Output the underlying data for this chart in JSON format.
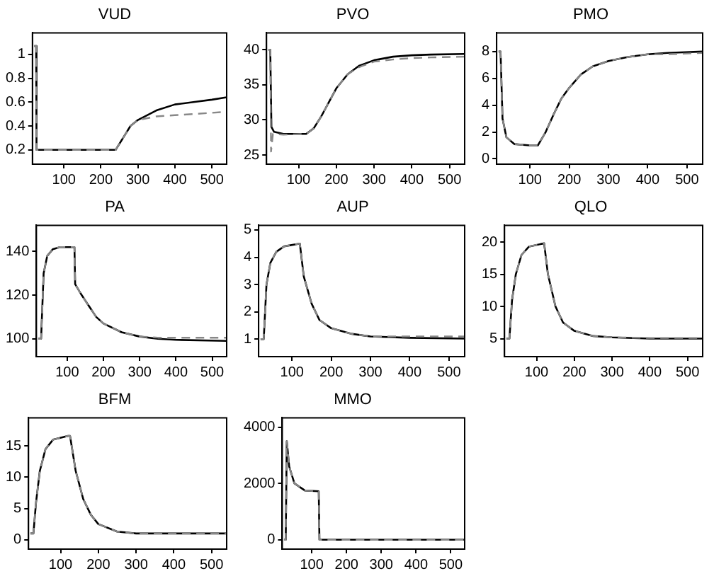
{
  "chart_data": [
    {
      "type": "line",
      "title": "VUD",
      "xlim": [
        15,
        540
      ],
      "xticks": [
        100,
        200,
        300,
        400,
        500
      ],
      "ylim": [
        0.08,
        1.18
      ],
      "yticks": [
        0.2,
        0.4,
        0.6,
        0.8,
        1
      ],
      "marker": "none",
      "series": [
        {
          "color": "#000000",
          "line_style": "solid",
          "x": [
            20,
            25,
            26,
            240,
            260,
            280,
            300,
            350,
            400,
            450,
            500,
            540
          ],
          "values": [
            1.07,
            1.07,
            0.2,
            0.2,
            0.3,
            0.4,
            0.45,
            0.53,
            0.58,
            0.6,
            0.62,
            0.64
          ]
        },
        {
          "color": "#888888",
          "line_style": "dashed",
          "x": [
            20,
            25,
            26,
            240,
            260,
            280,
            300,
            350,
            400,
            450,
            500,
            540
          ],
          "values": [
            1.07,
            1.07,
            0.2,
            0.2,
            0.3,
            0.4,
            0.45,
            0.48,
            0.49,
            0.5,
            0.51,
            0.52
          ]
        }
      ]
    },
    {
      "type": "line",
      "title": "PVO",
      "xlim": [
        15,
        540
      ],
      "xticks": [
        100,
        200,
        300,
        400,
        500
      ],
      "ylim": [
        23.7,
        42.4
      ],
      "yticks": [
        25,
        30,
        35,
        40
      ],
      "marker": "none",
      "series": [
        {
          "color": "#000000",
          "line_style": "solid",
          "x": [
            20,
            25,
            28,
            35,
            60,
            120,
            140,
            160,
            180,
            200,
            230,
            260,
            300,
            350,
            400,
            450,
            540
          ],
          "values": [
            40,
            40,
            29,
            28.3,
            28,
            28,
            28.8,
            30.5,
            32.5,
            34.5,
            36.5,
            37.7,
            38.5,
            39,
            39.2,
            39.3,
            39.4
          ]
        },
        {
          "color": "#888888",
          "line_style": "dashed",
          "x": [
            20,
            25,
            27,
            32,
            60,
            120,
            140,
            160,
            180,
            200,
            230,
            260,
            300,
            350,
            400,
            450,
            540
          ],
          "values": [
            40,
            40,
            25.5,
            28,
            27.9,
            28,
            28.8,
            30.5,
            32.5,
            34.5,
            36.5,
            37.5,
            38.3,
            38.6,
            38.8,
            38.9,
            39
          ]
        }
      ]
    },
    {
      "type": "line",
      "title": "PMO",
      "xlim": [
        15,
        540
      ],
      "xticks": [
        100,
        200,
        300,
        400,
        500
      ],
      "ylim": [
        -0.4,
        9.4
      ],
      "yticks": [
        0,
        2,
        4,
        6,
        8
      ],
      "marker": "none",
      "series": [
        {
          "color": "#000000",
          "line_style": "solid",
          "x": [
            20,
            25,
            30,
            40,
            60,
            100,
            120,
            140,
            160,
            180,
            200,
            230,
            260,
            300,
            350,
            400,
            450,
            540
          ],
          "values": [
            8,
            8,
            3,
            1.6,
            1.1,
            1,
            1,
            2,
            3.3,
            4.5,
            5.3,
            6.3,
            6.9,
            7.3,
            7.6,
            7.8,
            7.9,
            8
          ]
        },
        {
          "color": "#888888",
          "line_style": "dashed",
          "x": [
            20,
            25,
            30,
            40,
            60,
            100,
            120,
            140,
            160,
            180,
            200,
            230,
            260,
            300,
            350,
            400,
            450,
            540
          ],
          "values": [
            8,
            8,
            3,
            1.6,
            1.1,
            1,
            1,
            2,
            3.3,
            4.5,
            5.3,
            6.3,
            6.9,
            7.3,
            7.6,
            7.8,
            7.8,
            7.9
          ]
        }
      ]
    },
    {
      "type": "line",
      "title": "PA",
      "xlim": [
        15,
        540
      ],
      "xticks": [
        100,
        200,
        300,
        400,
        500
      ],
      "ylim": [
        91.8,
        152
      ],
      "yticks": [
        100,
        120,
        140
      ],
      "marker": "none",
      "series": [
        {
          "color": "#000000",
          "line_style": "solid",
          "x": [
            20,
            28,
            35,
            45,
            60,
            80,
            120,
            122,
            140,
            160,
            180,
            200,
            250,
            300,
            350,
            400,
            540
          ],
          "values": [
            100,
            100,
            130,
            138,
            141,
            142,
            142,
            125,
            120,
            115,
            110,
            107,
            103,
            101,
            100,
            99.5,
            99
          ]
        },
        {
          "color": "#888888",
          "line_style": "dashed",
          "x": [
            20,
            28,
            35,
            45,
            60,
            80,
            120,
            122,
            140,
            160,
            180,
            200,
            250,
            300,
            350,
            400,
            540
          ],
          "values": [
            100,
            100,
            130,
            138,
            141,
            142,
            142,
            125,
            120,
            115,
            110,
            107,
            103,
            101,
            100.5,
            100.5,
            100.5
          ]
        }
      ]
    },
    {
      "type": "line",
      "title": "AUP",
      "xlim": [
        15,
        540
      ],
      "xticks": [
        100,
        200,
        300,
        400,
        500
      ],
      "ylim": [
        0.36,
        5.17
      ],
      "yticks": [
        1,
        2,
        3,
        4,
        5
      ],
      "marker": "none",
      "series": [
        {
          "color": "#000000",
          "line_style": "solid",
          "x": [
            20,
            28,
            35,
            45,
            60,
            80,
            120,
            130,
            150,
            170,
            200,
            250,
            300,
            400,
            540
          ],
          "values": [
            1,
            1,
            3,
            3.8,
            4.2,
            4.4,
            4.5,
            3.3,
            2.3,
            1.7,
            1.4,
            1.2,
            1.1,
            1.05,
            1.02
          ]
        },
        {
          "color": "#888888",
          "line_style": "dashed",
          "x": [
            20,
            28,
            35,
            45,
            60,
            80,
            120,
            130,
            150,
            170,
            200,
            250,
            300,
            400,
            540
          ],
          "values": [
            1,
            1,
            3,
            3.8,
            4.2,
            4.4,
            4.5,
            3.3,
            2.3,
            1.7,
            1.4,
            1.2,
            1.1,
            1.1,
            1.1
          ]
        }
      ]
    },
    {
      "type": "line",
      "title": "QLO",
      "xlim": [
        15,
        540
      ],
      "xticks": [
        100,
        200,
        300,
        400,
        500
      ],
      "ylim": [
        2.2,
        22.6
      ],
      "yticks": [
        5,
        10,
        15,
        20
      ],
      "marker": "none",
      "series": [
        {
          "color": "#000000",
          "line_style": "solid",
          "x": [
            20,
            28,
            35,
            45,
            60,
            80,
            120,
            130,
            150,
            170,
            200,
            250,
            300,
            400,
            540
          ],
          "values": [
            5,
            5,
            11,
            15,
            18,
            19.3,
            19.8,
            15,
            10,
            7.5,
            6.2,
            5.4,
            5.2,
            5,
            5
          ]
        },
        {
          "color": "#888888",
          "line_style": "dashed",
          "x": [
            20,
            28,
            35,
            45,
            60,
            80,
            120,
            130,
            150,
            170,
            200,
            250,
            300,
            400,
            540
          ],
          "values": [
            5,
            5,
            11,
            15,
            18,
            19.3,
            19.8,
            15,
            10,
            7.5,
            6.2,
            5.4,
            5.2,
            5.1,
            5.1
          ]
        }
      ]
    },
    {
      "type": "line",
      "title": "BFM",
      "xlim": [
        15,
        540
      ],
      "xticks": [
        100,
        200,
        300,
        400,
        500
      ],
      "ylim": [
        -1.5,
        19.5
      ],
      "yticks": [
        0,
        5,
        10,
        15
      ],
      "marker": "none",
      "series": [
        {
          "color": "#000000",
          "line_style": "solid",
          "x": [
            20,
            28,
            35,
            45,
            60,
            80,
            120,
            125,
            140,
            160,
            180,
            200,
            250,
            300,
            540
          ],
          "values": [
            1,
            1,
            6,
            11,
            14.5,
            16,
            16.6,
            16.6,
            11,
            6.5,
            4,
            2.5,
            1.3,
            1,
            1
          ]
        },
        {
          "color": "#888888",
          "line_style": "dashed",
          "x": [
            20,
            28,
            35,
            45,
            60,
            80,
            120,
            125,
            140,
            160,
            180,
            200,
            250,
            300,
            540
          ],
          "values": [
            1,
            1,
            6,
            11,
            14.5,
            16,
            16.6,
            16.6,
            11,
            6.5,
            4,
            2.5,
            1.3,
            1,
            1
          ]
        }
      ]
    },
    {
      "type": "line",
      "title": "MMO",
      "xlim": [
        15,
        540
      ],
      "xticks": [
        100,
        200,
        300,
        400,
        500
      ],
      "ylim": [
        -333,
        4330
      ],
      "yticks": [
        0,
        2000,
        4000
      ],
      "marker": "none",
      "series": [
        {
          "color": "#000000",
          "line_style": "solid",
          "x": [
            20,
            25,
            28,
            35,
            50,
            80,
            120,
            122,
            540
          ],
          "values": [
            0,
            0,
            3500,
            2600,
            2000,
            1750,
            1720,
            0,
            0
          ]
        },
        {
          "color": "#888888",
          "line_style": "dashed",
          "x": [
            20,
            25,
            28,
            35,
            50,
            80,
            120,
            122,
            540
          ],
          "values": [
            0,
            0,
            3500,
            2600,
            2000,
            1750,
            1720,
            0,
            0
          ]
        }
      ]
    }
  ]
}
